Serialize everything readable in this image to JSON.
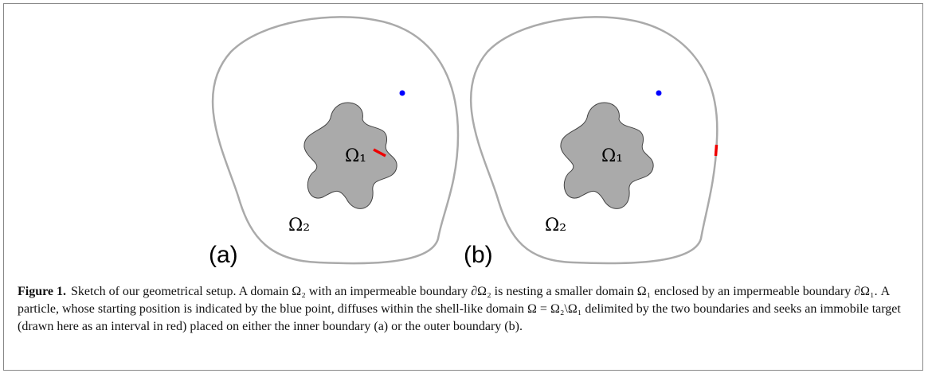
{
  "figure": {
    "panels": [
      {
        "label": "(a)",
        "inner_label": "Ω₁",
        "outer_label": "Ω₂"
      },
      {
        "label": "(b)",
        "inner_label": "Ω₁",
        "outer_label": "Ω₂"
      }
    ],
    "caption": {
      "label": "Figure 1.",
      "text": "Sketch of our geometrical setup. A domain Ω₂ with an impermeable boundary ∂Ω₂ is nesting a smaller domain Ω₁ enclosed by an impermeable boundary ∂Ω₁. A particle, whose starting position is indicated by the blue point, diffuses within the shell-like domain Ω = Ω₂\\Ω₁ delimited by the two boundaries and seeks an immobile target (drawn here as an interval in red) placed on either the inner boundary (a) or the outer boundary (b)."
    }
  }
}
